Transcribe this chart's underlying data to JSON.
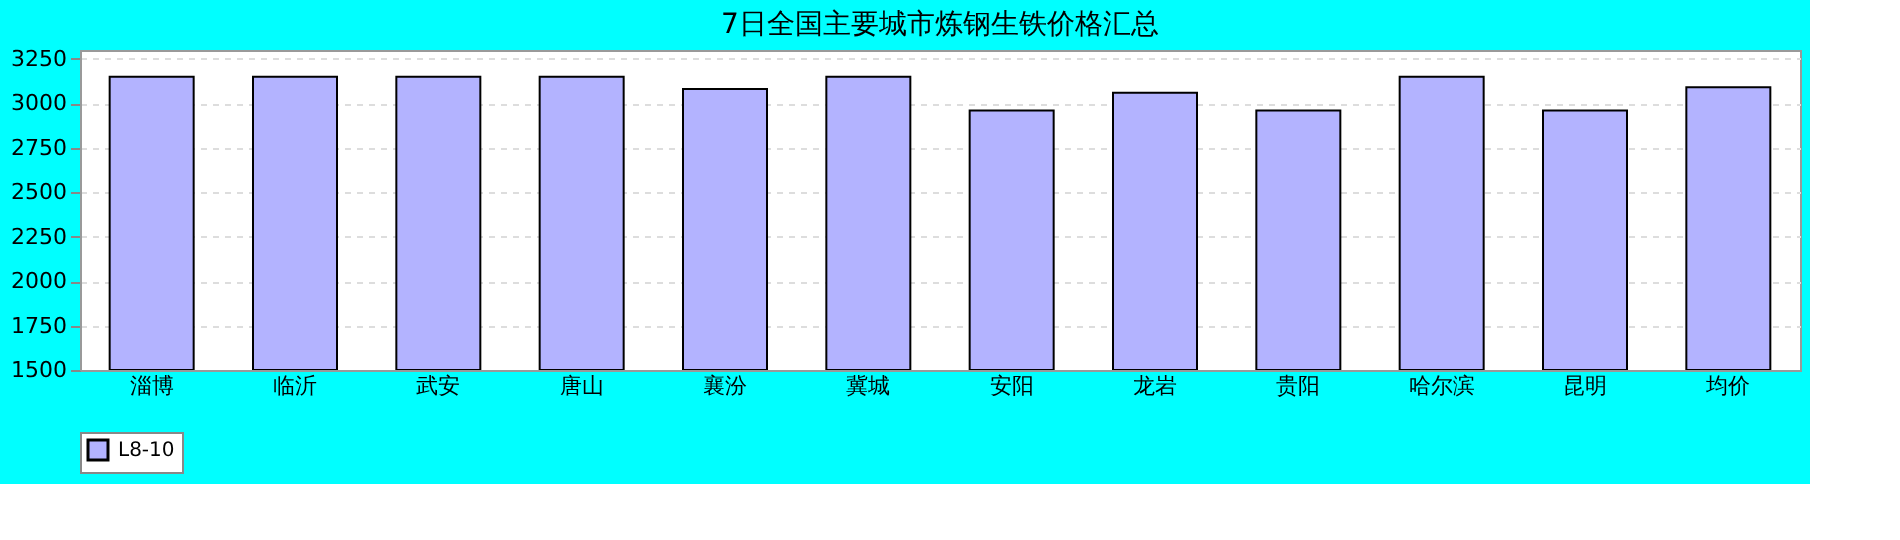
{
  "chart_data": {
    "type": "bar",
    "title": "7日全国主要城市炼钢生铁价格汇总",
    "categories": [
      "淄博",
      "临沂",
      "武安",
      "唐山",
      "襄汾",
      "冀城",
      "安阳",
      "龙岩",
      "贵阳",
      "哈尔滨",
      "昆明",
      "均价"
    ],
    "series": [
      {
        "name": "L8-10",
        "color": "#b3b3ff",
        "values": [
          3150,
          3150,
          3150,
          3150,
          3080,
          3150,
          2960,
          3060,
          2960,
          3150,
          2960,
          3090
        ]
      }
    ],
    "ylim": [
      1500,
      3300
    ],
    "yticks": [
      1500,
      1750,
      2000,
      2250,
      2500,
      2750,
      3000,
      3250
    ],
    "grid": "y",
    "legend": "bottom"
  }
}
